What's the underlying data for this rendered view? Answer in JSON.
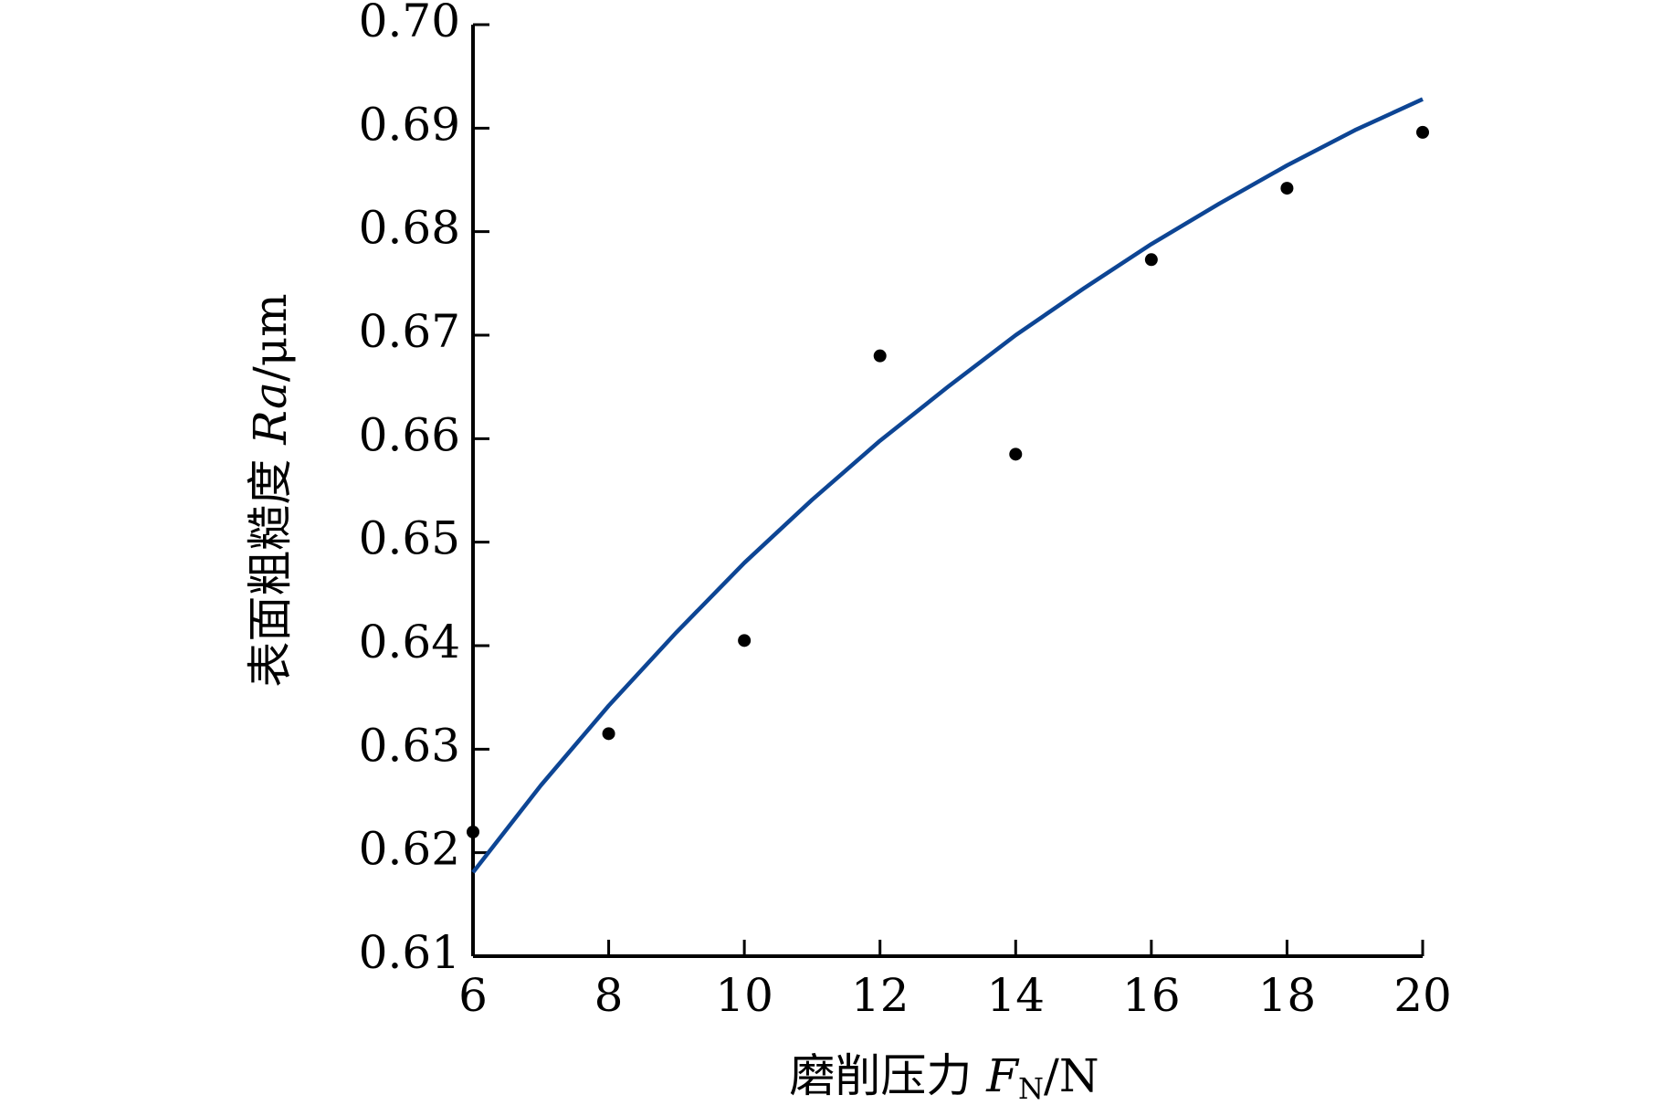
{
  "chart_data": {
    "type": "scatter",
    "title": "",
    "xlabel": {
      "prefix": "磨削压力 ",
      "symbol": "F",
      "subscript": "N",
      "unit": "/N"
    },
    "ylabel": {
      "prefix": "表面粗糙度 ",
      "symbol": "Ra",
      "unit": "/μm"
    },
    "xlim": [
      6,
      20
    ],
    "ylim": [
      0.61,
      0.7
    ],
    "x_ticks": [
      6,
      8,
      10,
      12,
      14,
      16,
      18,
      20
    ],
    "x_tick_labels": [
      "6",
      "8",
      "10",
      "12",
      "14",
      "16",
      "18",
      "20"
    ],
    "y_ticks": [
      0.61,
      0.62,
      0.63,
      0.64,
      0.65,
      0.66,
      0.67,
      0.68,
      0.69,
      0.7
    ],
    "y_tick_labels": [
      "0.61",
      "0.62",
      "0.63",
      "0.64",
      "0.65",
      "0.66",
      "0.67",
      "0.68",
      "0.69",
      "0.70"
    ],
    "grid": false,
    "legend": "none",
    "series": [
      {
        "kind": "scatter",
        "color": "#000000",
        "points": [
          {
            "x": 6,
            "y": 0.622
          },
          {
            "x": 8,
            "y": 0.6315
          },
          {
            "x": 10,
            "y": 0.6405
          },
          {
            "x": 12,
            "y": 0.668
          },
          {
            "x": 14,
            "y": 0.6585
          },
          {
            "x": 16,
            "y": 0.6773
          },
          {
            "x": 18,
            "y": 0.6842
          },
          {
            "x": 20,
            "y": 0.6896
          }
        ]
      },
      {
        "kind": "fit-line",
        "color": "#0d4594",
        "points": [
          {
            "x": 6,
            "y": 0.6181
          },
          {
            "x": 7,
            "y": 0.6265
          },
          {
            "x": 8,
            "y": 0.6342
          },
          {
            "x": 9,
            "y": 0.6413
          },
          {
            "x": 10,
            "y": 0.648
          },
          {
            "x": 11,
            "y": 0.6541
          },
          {
            "x": 12,
            "y": 0.6598
          },
          {
            "x": 13,
            "y": 0.665
          },
          {
            "x": 14,
            "y": 0.67
          },
          {
            "x": 15,
            "y": 0.6745
          },
          {
            "x": 16,
            "y": 0.6788
          },
          {
            "x": 17,
            "y": 0.6827
          },
          {
            "x": 18,
            "y": 0.6864
          },
          {
            "x": 19,
            "y": 0.6898
          },
          {
            "x": 20,
            "y": 0.6928
          }
        ]
      }
    ]
  }
}
